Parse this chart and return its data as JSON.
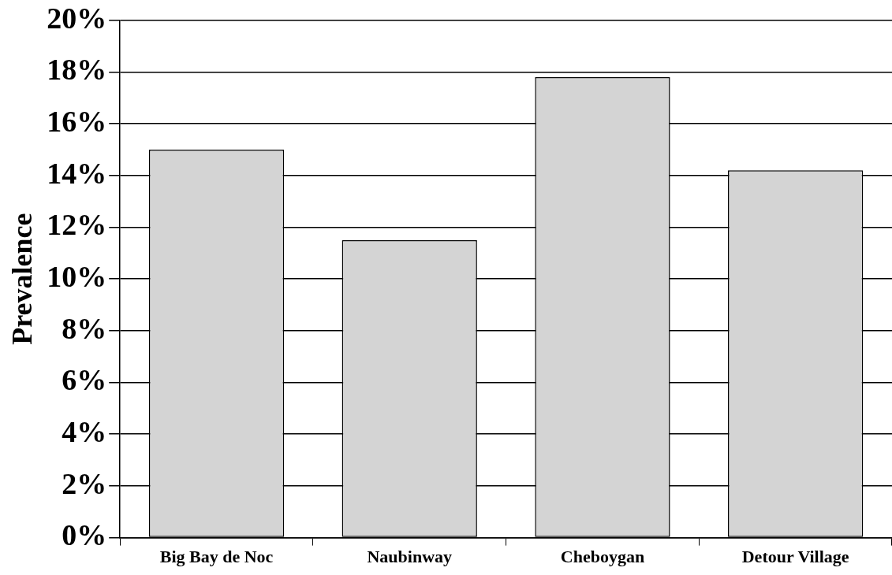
{
  "chart_data": {
    "type": "bar",
    "ylabel": "Prevalence",
    "categories": [
      "Big Bay de Noc",
      "Naubinway",
      "Cheboygan",
      "Detour Village"
    ],
    "values": [
      15,
      11.5,
      17.8,
      14.2
    ],
    "color": "#d4d4d4",
    "ylim": [
      0,
      20
    ],
    "yticks": [
      {
        "value": 0,
        "label": "0%"
      },
      {
        "value": 2,
        "label": "2%"
      },
      {
        "value": 4,
        "label": "4%"
      },
      {
        "value": 6,
        "label": "6%"
      },
      {
        "value": 8,
        "label": "8%"
      },
      {
        "value": 10,
        "label": "10%"
      },
      {
        "value": 12,
        "label": "12%"
      },
      {
        "value": 14,
        "label": "14%"
      },
      {
        "value": 16,
        "label": "16%"
      },
      {
        "value": 18,
        "label": "18%"
      },
      {
        "value": 20,
        "label": "20%"
      }
    ],
    "grid": "y",
    "legend": false
  }
}
